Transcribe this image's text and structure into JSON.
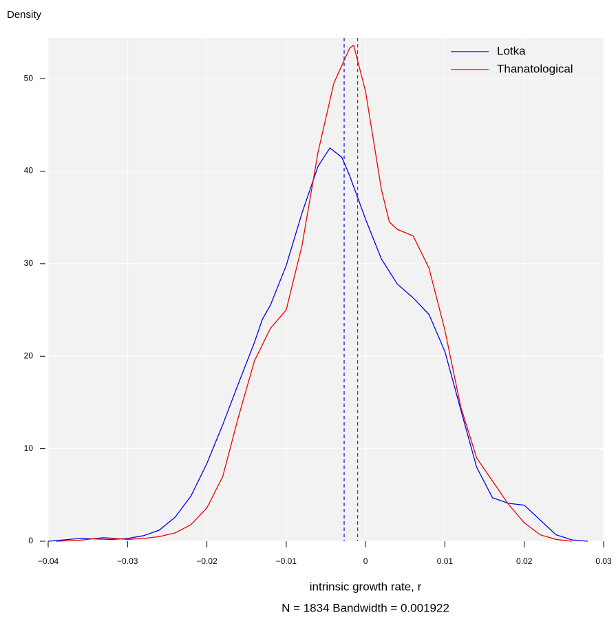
{
  "chart_data": {
    "type": "line",
    "ylabel": "Density",
    "xlabel": "intrinsic growth rate, r",
    "subtitle": "N = 1834   Bandwidth = 0.001922",
    "xlim": [
      -0.04,
      0.03
    ],
    "ylim": [
      0,
      54.4
    ],
    "xticks": [
      {
        "value": -0.04,
        "label": "−0.04"
      },
      {
        "value": -0.03,
        "label": "−0.03"
      },
      {
        "value": -0.02,
        "label": "−0.02"
      },
      {
        "value": -0.01,
        "label": "−0.01"
      },
      0,
      0.01,
      0.02,
      0.03
    ],
    "yticks": [
      0,
      10,
      20,
      30,
      40,
      50
    ],
    "grid": true,
    "legend": "top-right",
    "series": [
      {
        "name": "Lotka",
        "color": "#0000ee",
        "mean": -0.0027,
        "x": [
          -0.04,
          -0.036,
          -0.032,
          -0.03,
          -0.028,
          -0.026,
          -0.024,
          -0.022,
          -0.02,
          -0.018,
          -0.016,
          -0.014,
          -0.013,
          -0.012,
          -0.01,
          -0.008,
          -0.006,
          -0.0045,
          -0.003,
          -0.002,
          0,
          0.002,
          0.004,
          0.006,
          0.008,
          0.01,
          0.012,
          0.014,
          0.016,
          0.018,
          0.02,
          0.022,
          0.024,
          0.026,
          0.028
        ],
        "values": [
          0,
          0.3,
          0.2,
          0.3,
          0.6,
          1.2,
          2.6,
          4.9,
          8.4,
          12.6,
          17.1,
          21.5,
          24,
          25.5,
          29.8,
          35.5,
          40.5,
          42.5,
          41.5,
          39.5,
          34.8,
          30.5,
          27.8,
          26.3,
          24.5,
          20.5,
          14.2,
          8,
          4.7,
          4.1,
          3.9,
          2.3,
          0.7,
          0.15,
          0
        ]
      },
      {
        "name": "Thanatological",
        "color": "#ee0000",
        "mean": -0.001,
        "x": [
          -0.039,
          -0.036,
          -0.033,
          -0.03,
          -0.028,
          -0.026,
          -0.024,
          -0.022,
          -0.02,
          -0.018,
          -0.016,
          -0.014,
          -0.012,
          -0.01,
          -0.008,
          -0.006,
          -0.004,
          -0.002,
          -0.0015,
          0,
          0.002,
          0.003,
          0.004,
          0.006,
          0.008,
          0.01,
          0.012,
          0.014,
          0.016,
          0.018,
          0.02,
          0.022,
          0.024,
          0.026
        ],
        "values": [
          0,
          0.1,
          0.4,
          0.2,
          0.3,
          0.5,
          0.9,
          1.8,
          3.6,
          7,
          13.5,
          19.5,
          23,
          25,
          32,
          42,
          49.5,
          53.3,
          53.6,
          48.6,
          38,
          34.5,
          33.7,
          33,
          29.5,
          22.8,
          14.5,
          9,
          6.5,
          4,
          2,
          0.7,
          0.2,
          0
        ]
      }
    ]
  }
}
